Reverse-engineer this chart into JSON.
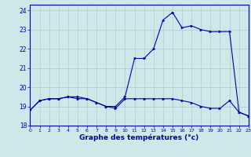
{
  "xlabel": "Graphe des températures (°c)",
  "bg_color": "#cce8e8",
  "line_color": "#0000aa",
  "grid_color": "#aacccc",
  "xlim": [
    0,
    23
  ],
  "ylim": [
    18,
    24.3
  ],
  "yticks": [
    18,
    19,
    20,
    21,
    22,
    23,
    24
  ],
  "xticks": [
    0,
    1,
    2,
    3,
    4,
    5,
    6,
    7,
    8,
    9,
    10,
    11,
    12,
    13,
    14,
    15,
    16,
    17,
    18,
    19,
    20,
    21,
    22,
    23
  ],
  "line1_x": [
    0,
    1,
    2,
    3,
    4,
    5,
    6,
    7,
    8,
    9,
    10,
    11,
    12,
    13,
    14,
    15,
    16,
    17,
    18,
    19,
    20,
    21,
    22,
    23
  ],
  "line1_y": [
    18.8,
    19.3,
    19.4,
    19.4,
    19.5,
    19.5,
    19.4,
    19.2,
    19.0,
    19.0,
    19.5,
    21.5,
    21.5,
    22.0,
    23.5,
    23.9,
    23.1,
    23.2,
    23.0,
    22.9,
    22.9,
    22.9,
    18.7,
    18.5
  ],
  "line2_x": [
    0,
    1,
    2,
    3,
    4,
    5,
    6,
    7,
    8,
    9,
    10,
    11,
    12,
    13,
    14,
    15,
    16,
    17,
    18,
    19,
    20,
    21,
    22,
    23
  ],
  "line2_y": [
    18.8,
    19.3,
    19.4,
    19.4,
    19.5,
    19.4,
    19.4,
    19.2,
    19.0,
    18.9,
    19.4,
    19.4,
    19.4,
    19.4,
    19.4,
    19.4,
    19.3,
    19.2,
    19.0,
    18.9,
    18.9,
    19.3,
    18.7,
    18.5
  ]
}
